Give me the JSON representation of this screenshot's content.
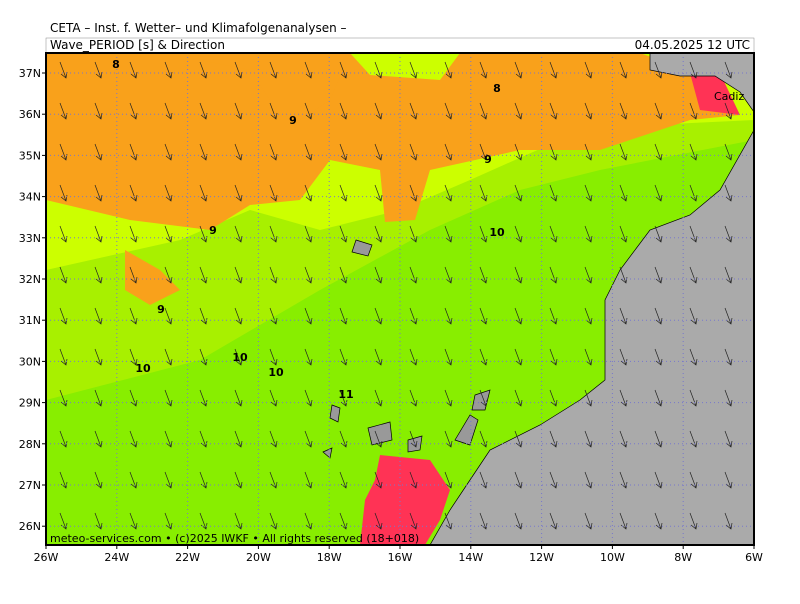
{
  "header": {
    "org": "CETA – Inst. f. Wetter– und Klimafolgenanalysen –",
    "title": "Wave_PERIOD [s] & Direction",
    "datetime": "04.05.2025 12 UTC"
  },
  "axes": {
    "lat_labels": [
      "37N",
      "36N",
      "35N",
      "34N",
      "33N",
      "32N",
      "31N",
      "30N",
      "29N",
      "28N",
      "27N",
      "26N"
    ],
    "lon_labels": [
      "26W",
      "24W",
      "22W",
      "20W",
      "18W",
      "16W",
      "14W",
      "12W",
      "10W",
      "8W",
      "6W"
    ]
  },
  "contour_labels": [
    "8",
    "8",
    "9",
    "9",
    "9",
    "9",
    "10",
    "10",
    "10",
    "10",
    "11"
  ],
  "place_labels": [
    "Cadiz"
  ],
  "footer": "meteo-services.com • (c)2025 IWKF • All rights reserved (18+018)"
}
